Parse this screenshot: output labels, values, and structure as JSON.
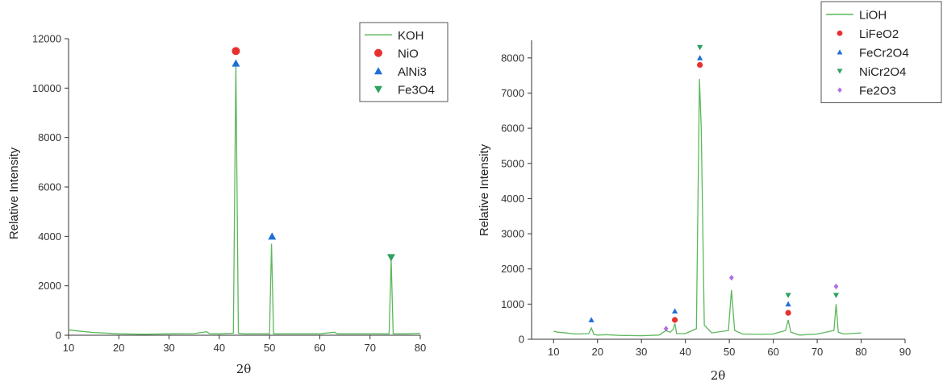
{
  "chart_data": [
    {
      "type": "line",
      "title": "",
      "xlabel": "2θ",
      "ylabel": "Relative Intensity",
      "xlim": [
        10,
        80
      ],
      "ylim": [
        0,
        12000
      ],
      "xticks": [
        10,
        20,
        30,
        40,
        50,
        60,
        70,
        80
      ],
      "yticks": [
        0,
        2000,
        4000,
        6000,
        8000,
        10000,
        12000
      ],
      "grid": false,
      "legend_position": "top-right",
      "series": [
        {
          "name": "KOH",
          "color": "#5cb85c",
          "x": [
            10,
            12,
            15,
            20,
            25,
            30,
            35,
            37.5,
            38,
            40,
            42.8,
            43.3,
            43.8,
            45,
            50,
            50.4,
            50.8,
            51.2,
            55,
            60,
            62.9,
            63.5,
            65,
            70,
            73.8,
            74.2,
            74.6,
            77,
            80
          ],
          "y": [
            220,
            170,
            110,
            60,
            40,
            60,
            70,
            140,
            70,
            60,
            80,
            11000,
            80,
            60,
            60,
            3700,
            60,
            60,
            60,
            60,
            120,
            60,
            60,
            60,
            60,
            3100,
            60,
            60,
            80
          ]
        }
      ],
      "markers": [
        {
          "series": "NiO",
          "shape": "circle",
          "color": "#e8302f",
          "points": [
            [
              43.3,
              11500
            ]
          ]
        },
        {
          "series": "AlNi3",
          "shape": "triangle-up",
          "color": "#1f6fd6",
          "points": [
            [
              43.3,
              11000
            ],
            [
              50.5,
              4000
            ]
          ]
        },
        {
          "series": "Fe3O4",
          "shape": "triangle-down",
          "color": "#2ca25f",
          "points": [
            [
              74.2,
              3150
            ]
          ]
        }
      ],
      "legend": [
        "KOH",
        "NiO",
        "AlNi3",
        "Fe3O4"
      ]
    },
    {
      "type": "line",
      "title": "",
      "xlabel": "2θ",
      "ylabel": "Relative Intensity",
      "xlim": [
        5,
        90
      ],
      "ylim": [
        0,
        8500
      ],
      "xticks": [
        10,
        20,
        30,
        40,
        50,
        60,
        70,
        80,
        90
      ],
      "yticks": [
        0,
        1000,
        2000,
        3000,
        4000,
        5000,
        6000,
        7000,
        8000
      ],
      "grid": false,
      "legend_position": "top-right",
      "series": [
        {
          "name": "LiOH",
          "color": "#5cb85c",
          "x": [
            10,
            11,
            12,
            15,
            18,
            18.6,
            19.2,
            20,
            22,
            25,
            30,
            34,
            35.6,
            36.5,
            37.2,
            37.6,
            38,
            40,
            42.5,
            43.2,
            43.6,
            44.3,
            46,
            49.8,
            50.5,
            51.2,
            53,
            57,
            60,
            62.8,
            63.4,
            64,
            66,
            70,
            73.8,
            74.3,
            74.8,
            76,
            80
          ],
          "y": [
            230,
            200,
            190,
            150,
            160,
            320,
            140,
            120,
            130,
            110,
            100,
            120,
            250,
            200,
            280,
            450,
            160,
            160,
            300,
            7400,
            6000,
            400,
            180,
            250,
            1400,
            250,
            150,
            140,
            150,
            250,
            550,
            200,
            120,
            150,
            250,
            1000,
            200,
            150,
            180
          ]
        }
      ],
      "markers": [
        {
          "series": "LiFeO2",
          "shape": "circle",
          "color": "#e8302f",
          "points": [
            [
              37.6,
              550
            ],
            [
              43.3,
              7800
            ],
            [
              63.4,
              750
            ]
          ]
        },
        {
          "series": "FeCr2O4",
          "shape": "triangle-up",
          "color": "#1f6fd6",
          "points": [
            [
              18.6,
              550
            ],
            [
              37.6,
              800
            ],
            [
              43.3,
              8000
            ],
            [
              63.4,
              1000
            ]
          ]
        },
        {
          "series": "NiCr2O4",
          "shape": "triangle-down",
          "color": "#2ca25f",
          "points": [
            [
              43.3,
              8300
            ],
            [
              63.4,
              1250
            ],
            [
              74.3,
              1250
            ]
          ]
        },
        {
          "series": "Fe2O3",
          "shape": "diamond",
          "color": "#b06ee0",
          "points": [
            [
              35.6,
              300
            ],
            [
              50.5,
              1750
            ],
            [
              74.3,
              1500
            ]
          ]
        }
      ],
      "legend": [
        "LiOH",
        "LiFeO2",
        "FeCr2O4",
        "NiCr2O4",
        "Fe2O3"
      ]
    }
  ]
}
